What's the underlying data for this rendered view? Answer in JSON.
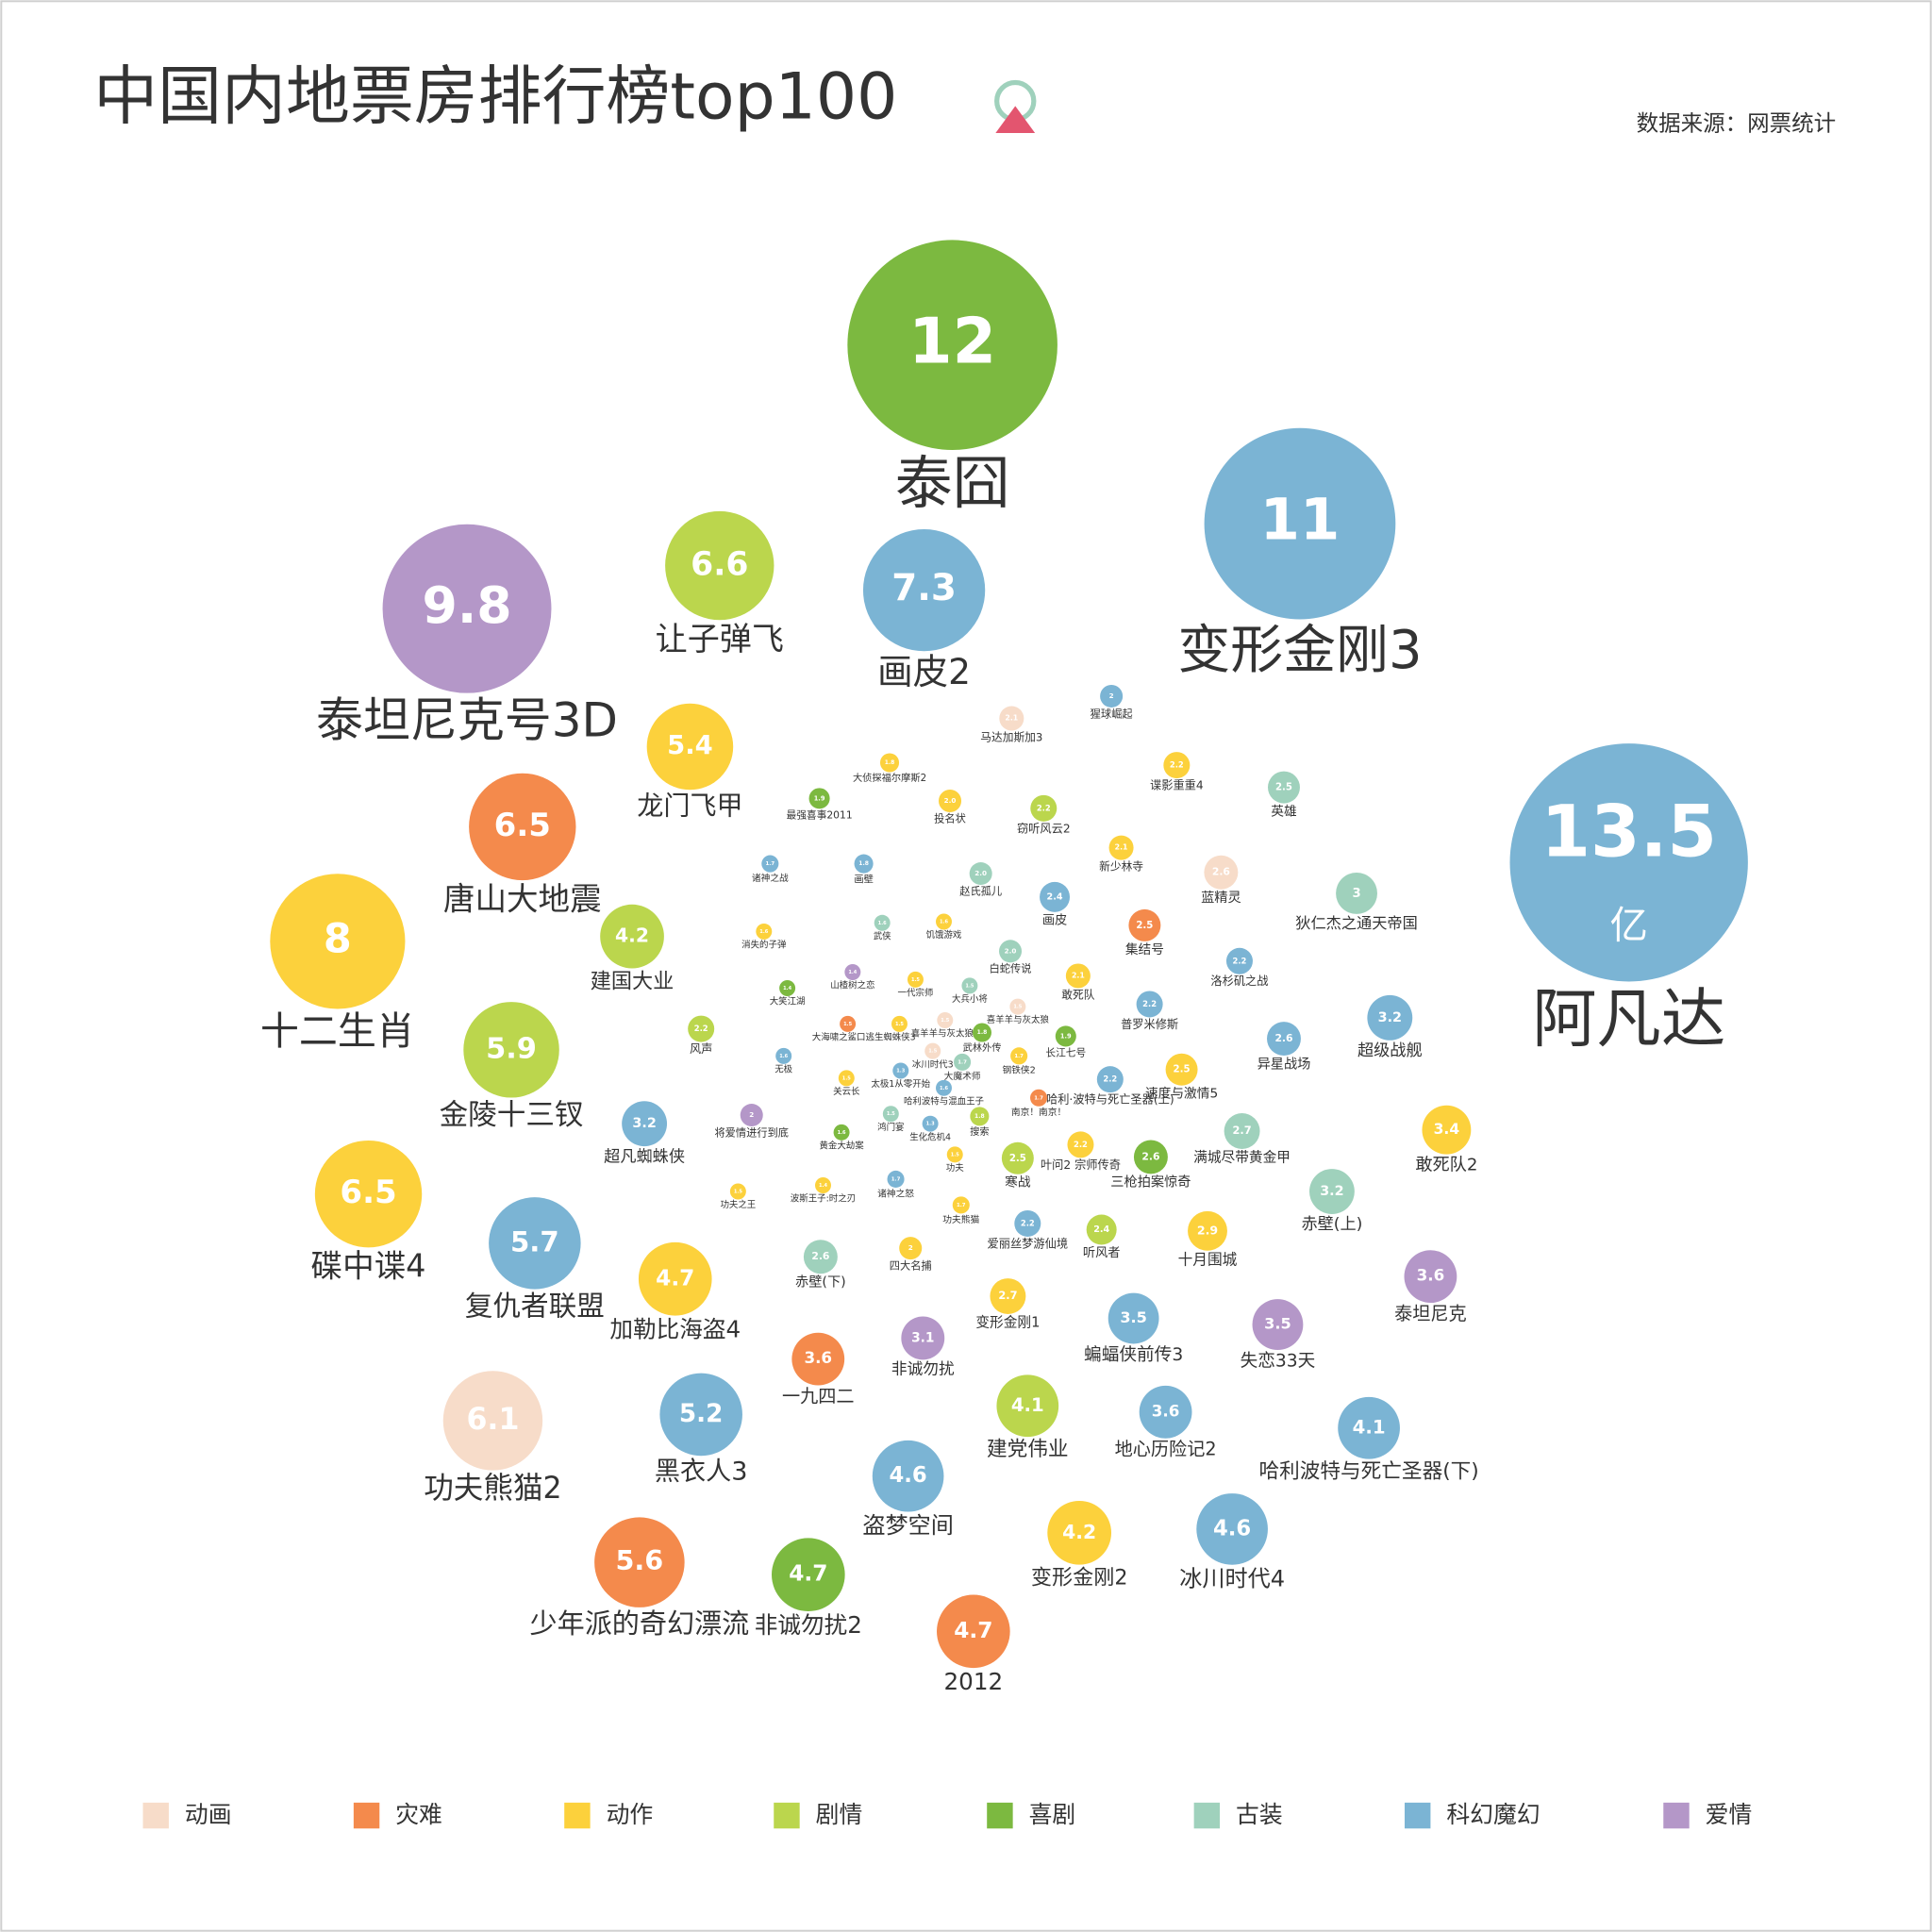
{
  "chart_data": {
    "type": "bubble",
    "title": "中国内地票房排行榜top100",
    "source": "数据来源：网票统计",
    "unit": "亿",
    "legend": [
      {
        "name": "动画",
        "color": "#f7dcc9"
      },
      {
        "name": "灾难",
        "color": "#f48a4c"
      },
      {
        "name": "动作",
        "color": "#fcd13c"
      },
      {
        "name": "剧情",
        "color": "#bbd64d"
      },
      {
        "name": "喜剧",
        "color": "#7cb940"
      },
      {
        "name": "古装",
        "color": "#9fd1bc"
      },
      {
        "name": "科幻魔幻",
        "color": "#7bb4d4"
      },
      {
        "name": "爱情",
        "color": "#b497c8"
      }
    ],
    "bubbles": [
      {
        "name": "阿凡达",
        "value": 13.5,
        "genre": "科幻魔幻"
      },
      {
        "name": "泰囧",
        "value": 12,
        "genre": "喜剧"
      },
      {
        "name": "变形金刚3",
        "value": 11,
        "genre": "科幻魔幻"
      },
      {
        "name": "泰坦尼克号3D",
        "value": 9.8,
        "genre": "爱情"
      },
      {
        "name": "十二生肖",
        "value": 8,
        "genre": "动作"
      },
      {
        "name": "画皮2",
        "value": 7.3,
        "genre": "科幻魔幻"
      },
      {
        "name": "让子弹飞",
        "value": 6.6,
        "genre": "剧情"
      },
      {
        "name": "唐山大地震",
        "value": 6.5,
        "genre": "灾难"
      },
      {
        "name": "碟中谍4",
        "value": 6.5,
        "genre": "动作"
      },
      {
        "name": "功夫熊猫2",
        "value": 6.1,
        "genre": "动画"
      },
      {
        "name": "金陵十三钗",
        "value": 5.9,
        "genre": "剧情"
      },
      {
        "name": "复仇者联盟",
        "value": 5.7,
        "genre": "科幻魔幻"
      },
      {
        "name": "少年派的奇幻漂流",
        "value": 5.6,
        "genre": "灾难"
      },
      {
        "name": "龙门飞甲",
        "value": 5.4,
        "genre": "动作"
      },
      {
        "name": "黑衣人3",
        "value": 5.2,
        "genre": "科幻魔幻"
      },
      {
        "name": "加勒比海盗4",
        "value": 4.7,
        "genre": "动作"
      },
      {
        "name": "非诚勿扰2",
        "value": 4.7,
        "genre": "喜剧"
      },
      {
        "name": "2012",
        "value": 4.7,
        "genre": "灾难"
      },
      {
        "name": "盗梦空间",
        "value": 4.6,
        "genre": "科幻魔幻"
      },
      {
        "name": "冰川时代4",
        "value": 4.6,
        "genre": "科幻魔幻"
      },
      {
        "name": "变形金刚2",
        "value": 4.2,
        "genre": "动作"
      },
      {
        "name": "建国大业",
        "value": 4.2,
        "genre": "剧情"
      },
      {
        "name": "建党伟业",
        "value": 4.1,
        "genre": "剧情"
      },
      {
        "name": "哈利波特与死亡圣器(下)",
        "value": 4.1,
        "genre": "科幻魔幻"
      },
      {
        "name": "一九四二",
        "value": 3.6,
        "genre": "灾难"
      },
      {
        "name": "地心历险记2",
        "value": 3.6,
        "genre": "科幻魔幻"
      },
      {
        "name": "泰坦尼克",
        "value": 3.6,
        "genre": "爱情"
      },
      {
        "name": "蝙蝠侠前传3",
        "value": 3.5,
        "genre": "科幻魔幻"
      },
      {
        "name": "失恋33天",
        "value": 3.5,
        "genre": "爱情"
      },
      {
        "name": "敢死队2",
        "value": 3.4,
        "genre": "动作"
      },
      {
        "name": "超级战舰",
        "value": 3.2,
        "genre": "科幻魔幻"
      },
      {
        "name": "赤壁(上)",
        "value": 3.2,
        "genre": "古装"
      },
      {
        "name": "超凡蜘蛛侠",
        "value": 3.2,
        "genre": "科幻魔幻"
      },
      {
        "name": "非诚勿扰",
        "value": 3.1,
        "genre": "爱情"
      },
      {
        "name": "狄仁杰之通天帝国",
        "value": 3,
        "genre": "古装"
      },
      {
        "name": "十月围城",
        "value": 2.9,
        "genre": "动作"
      },
      {
        "name": "满城尽带黄金甲",
        "value": 2.7,
        "genre": "古装"
      },
      {
        "name": "变形金刚1",
        "value": 2.7,
        "genre": "动作"
      },
      {
        "name": "赤壁(下)",
        "value": 2.6,
        "genre": "古装"
      },
      {
        "name": "三枪拍案惊奇",
        "value": 2.6,
        "genre": "喜剧"
      },
      {
        "name": "异星战场",
        "value": 2.6,
        "genre": "科幻魔幻"
      },
      {
        "name": "蓝精灵",
        "value": 2.6,
        "genre": "动画"
      },
      {
        "name": "速度与激情5",
        "value": 2.5,
        "genre": "动作"
      },
      {
        "name": "寒战",
        "value": 2.5,
        "genre": "剧情"
      },
      {
        "name": "集结号",
        "value": 2.5,
        "genre": "灾难"
      },
      {
        "name": "英雄",
        "value": 2.5,
        "genre": "古装"
      },
      {
        "name": "画皮",
        "value": 2.4,
        "genre": "科幻魔幻"
      },
      {
        "name": "听风者",
        "value": 2.4,
        "genre": "剧情"
      },
      {
        "name": "叶问2 宗师传奇",
        "value": 2.2,
        "genre": "动作"
      },
      {
        "name": "爱丽丝梦游仙境",
        "value": 2.2,
        "genre": "科幻魔幻"
      },
      {
        "name": "普罗米修斯",
        "value": 2.2,
        "genre": "科幻魔幻"
      },
      {
        "name": "洛杉矶之战",
        "value": 2.2,
        "genre": "科幻魔幻"
      },
      {
        "name": "哈利·波特与死亡圣器(上)",
        "value": 2.2,
        "genre": "科幻魔幻"
      },
      {
        "name": "谍影重重4",
        "value": 2.2,
        "genre": "动作"
      },
      {
        "name": "窃听风云2",
        "value": 2.2,
        "genre": "剧情"
      },
      {
        "name": "风声",
        "value": 2.2,
        "genre": "剧情"
      },
      {
        "name": "新少林寺",
        "value": 2.1,
        "genre": "动作"
      },
      {
        "name": "敢死队",
        "value": 2.1,
        "genre": "动作"
      },
      {
        "name": "白蛇传说",
        "value": 2.0,
        "value_label": "2.0",
        "genre": "古装"
      },
      {
        "name": "赵氏孤儿",
        "value": 2.0,
        "value_label": "2.0",
        "genre": "古装"
      },
      {
        "name": "投名状",
        "value": 2.0,
        "value_label": "2.0",
        "genre": "动作"
      },
      {
        "name": "马达加斯加3",
        "value": 2.1,
        "genre": "动画"
      },
      {
        "name": "猩球崛起",
        "value": 2,
        "genre": "科幻魔幻"
      },
      {
        "name": "大侦探福尔摩斯2",
        "value": 1.8,
        "genre": "动作"
      },
      {
        "name": "最强喜事2011",
        "value": 1.9,
        "genre": "喜剧"
      },
      {
        "name": "诸神之战",
        "value": 1.7,
        "genre": "科幻魔幻"
      },
      {
        "name": "画壁",
        "value": 1.8,
        "genre": "科幻魔幻"
      },
      {
        "name": "武侠",
        "value": 1.6,
        "genre": "古装"
      },
      {
        "name": "饥饿游戏",
        "value": 1.6,
        "genre": "动作"
      },
      {
        "name": "消失的子弹",
        "value": 1.6,
        "genre": "动作"
      },
      {
        "name": "山楂树之恋",
        "value": 1.4,
        "genre": "爱情"
      },
      {
        "name": "一代宗师",
        "value": 1.5,
        "genre": "动作"
      },
      {
        "name": "大兵小将",
        "value": 1.5,
        "genre": "古装"
      },
      {
        "name": "大笑江湖",
        "value": 1.4,
        "genre": "喜剧"
      },
      {
        "name": "喜羊羊与灰太狼",
        "value": 1.5,
        "genre": "动画"
      },
      {
        "name": "喜羊羊与灰太狼3",
        "value": 1.5,
        "genre": "动画"
      },
      {
        "name": "大海啸之鲨口逃生",
        "value": 1.5,
        "genre": "灾难"
      },
      {
        "name": "蜘蛛侠3",
        "value": 1.5,
        "genre": "动作"
      },
      {
        "name": "武林外传",
        "value": 1.8,
        "genre": "喜剧"
      },
      {
        "name": "长江七号",
        "value": 1.9,
        "genre": "喜剧"
      },
      {
        "name": "冰川时代3",
        "value": 1.5,
        "genre": "动画"
      },
      {
        "name": "无极",
        "value": 1.6,
        "genre": "科幻魔幻"
      },
      {
        "name": "钢铁侠2",
        "value": 1.7,
        "genre": "动作"
      },
      {
        "name": "大魔术师",
        "value": 1.7,
        "genre": "古装"
      },
      {
        "name": "关云长",
        "value": 1.5,
        "genre": "动作"
      },
      {
        "name": "太极1从零开始",
        "value": 1.3,
        "genre": "科幻魔幻"
      },
      {
        "name": "哈利波特与混血王子",
        "value": 1.6,
        "genre": "科幻魔幻"
      },
      {
        "name": "南京！南京！",
        "value": 1.7,
        "genre": "灾难"
      },
      {
        "name": "将爱情进行到底",
        "value": 2,
        "genre": "爱情"
      },
      {
        "name": "鸿门宴",
        "value": 1.5,
        "genre": "古装"
      },
      {
        "name": "生化危机4",
        "value": 1.3,
        "genre": "科幻魔幻"
      },
      {
        "name": "搜索",
        "value": 1.8,
        "genre": "剧情"
      },
      {
        "name": "黄金大劫案",
        "value": 1.6,
        "genre": "喜剧"
      },
      {
        "name": "功夫",
        "value": 1.5,
        "genre": "动作"
      },
      {
        "name": "功夫之王",
        "value": 1.5,
        "genre": "动作"
      },
      {
        "name": "波斯王子:时之刃",
        "value": 1.4,
        "genre": "动作"
      },
      {
        "name": "诸神之怒",
        "value": 1.7,
        "genre": "科幻魔幻"
      },
      {
        "name": "功夫熊猫",
        "value": 1.7,
        "genre": "动作"
      },
      {
        "name": "四大名捕",
        "value": 2,
        "genre": "动作"
      }
    ]
  }
}
